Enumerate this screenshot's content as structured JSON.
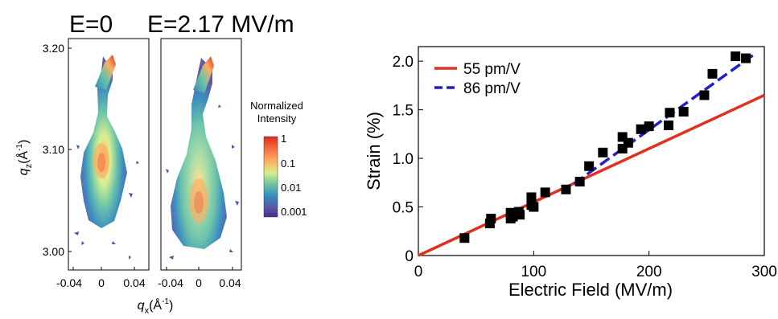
{
  "panels": {
    "left_title": "E=0",
    "right_title": "E=2.17 MV/m"
  },
  "heatmap": {
    "yaxis_label_main": "q",
    "yaxis_label_sub": "z",
    "yaxis_label_unit": "(Å",
    "yaxis_label_exp": "-1",
    "yaxis_label_close": ")",
    "xaxis_label_main": "q",
    "xaxis_label_sub": "x",
    "xaxis_label_unit": "(Å",
    "xaxis_label_exp": "-1",
    "xaxis_label_close": ")",
    "y_ticks": [
      "3.20",
      "3.10",
      "3.00"
    ],
    "x_ticks": [
      "-0.04",
      "0",
      "0.04",
      "-0.04",
      "0",
      "0.04"
    ]
  },
  "colorbar": {
    "title_line1": "Normalized",
    "title_line2": "Intensity",
    "ticks": [
      "1",
      "0.1",
      "0.01",
      "0.001"
    ],
    "colors": [
      "#d7301f",
      "#f46d43",
      "#fdae61",
      "#d9ef8b",
      "#66c2a5",
      "#3288bd",
      "#5e4fa2",
      "#4b2a8a"
    ]
  },
  "chart_data": [
    {
      "type": "heatmap",
      "title": "E=0",
      "xlabel": "qx (Å-1)",
      "ylabel": "qz (Å-1)",
      "xlim": [
        -0.06,
        0.06
      ],
      "ylim": [
        2.97,
        3.21
      ],
      "peak_qz": 3.085,
      "colorbar": "log scale 0.001–1"
    },
    {
      "type": "heatmap",
      "title": "E=2.17 MV/m",
      "xlabel": "qx (Å-1)",
      "ylabel": "qz (Å-1)",
      "xlim": [
        -0.06,
        0.06
      ],
      "ylim": [
        2.97,
        3.21
      ],
      "peak_qz": 3.04,
      "colorbar": "log scale 0.001–1"
    },
    {
      "type": "scatter",
      "xlabel": "Electric Field (MV/m)",
      "ylabel": "Strain (%)",
      "xlim": [
        0,
        300
      ],
      "ylim": [
        0,
        2.15
      ],
      "x_ticks": [
        "0",
        "100",
        "200",
        "300"
      ],
      "y_ticks": [
        "0",
        "0.5",
        "1.0",
        "1.5",
        "2.0"
      ],
      "legend_position": "top-left",
      "series": [
        {
          "name": "",
          "marker": "square",
          "color": "#000000",
          "points": [
            [
              40,
              0.18
            ],
            [
              62,
              0.33
            ],
            [
              63,
              0.38
            ],
            [
              80,
              0.38
            ],
            [
              80,
              0.44
            ],
            [
              82,
              0.4
            ],
            [
              87,
              0.45
            ],
            [
              88,
              0.42
            ],
            [
              98,
              0.52
            ],
            [
              98,
              0.6
            ],
            [
              100,
              0.5
            ],
            [
              110,
              0.65
            ],
            [
              128,
              0.68
            ],
            [
              140,
              0.76
            ],
            [
              148,
              0.92
            ],
            [
              160,
              1.06
            ],
            [
              177,
              1.1
            ],
            [
              177,
              1.22
            ],
            [
              182,
              1.16
            ],
            [
              193,
              1.3
            ],
            [
              200,
              1.33
            ],
            [
              217,
              1.34
            ],
            [
              218,
              1.47
            ],
            [
              230,
              1.48
            ],
            [
              248,
              1.65
            ],
            [
              255,
              1.87
            ],
            [
              275,
              2.05
            ],
            [
              284,
              2.03
            ]
          ]
        },
        {
          "name": "55 pm/V",
          "type": "line",
          "color": "#e0311e",
          "style": "solid",
          "x": [
            0,
            300
          ],
          "y": [
            0,
            1.65
          ]
        },
        {
          "name": "86 pm/V",
          "type": "line",
          "color": "#1f1fcf",
          "style": "dashed",
          "x": [
            135,
            290
          ],
          "y": [
            0.74,
            2.06
          ]
        }
      ]
    }
  ]
}
